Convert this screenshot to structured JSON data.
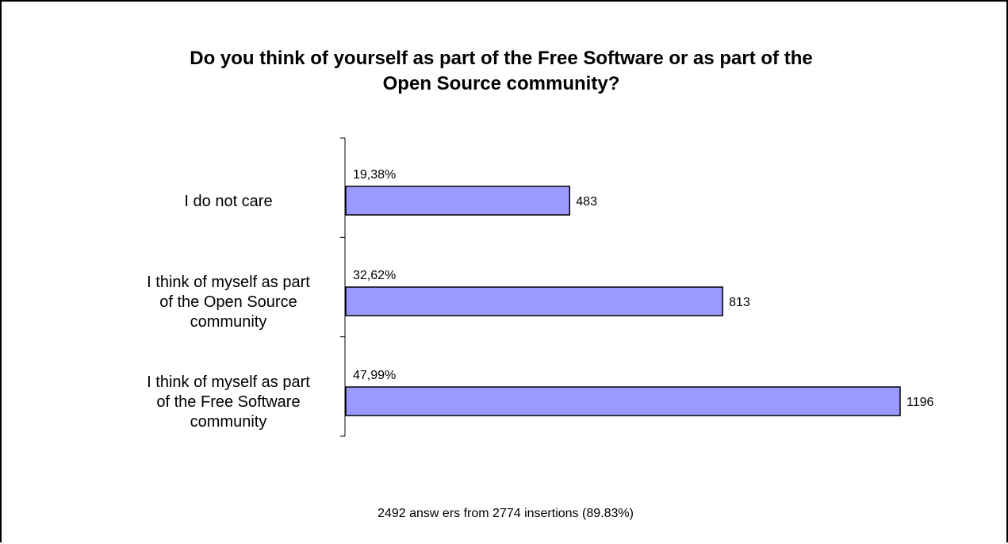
{
  "chart_data": {
    "type": "bar",
    "orientation": "horizontal",
    "title": "Do you think of yourself as part of the Free Software or as part of the\nOpen Source community?",
    "categories": [
      "I do not care",
      "I think of myself as part\nof the Open Source\ncommunity",
      "I think of myself as part\nof the Free Software\ncommunity"
    ],
    "values": [
      483,
      813,
      1196
    ],
    "percent_labels": [
      "19,38%",
      "32,62%",
      "47,99%"
    ],
    "value_labels": [
      "483",
      "813",
      "1196"
    ],
    "xlim": [
      0,
      1196
    ],
    "grid": false,
    "legend": "none",
    "footnote": "2492 answ ers from 2774 insertions (89.83%)",
    "colors": {
      "bar_fill": "#9999ff",
      "bar_stroke": "#000000",
      "frame": "#000000"
    }
  }
}
